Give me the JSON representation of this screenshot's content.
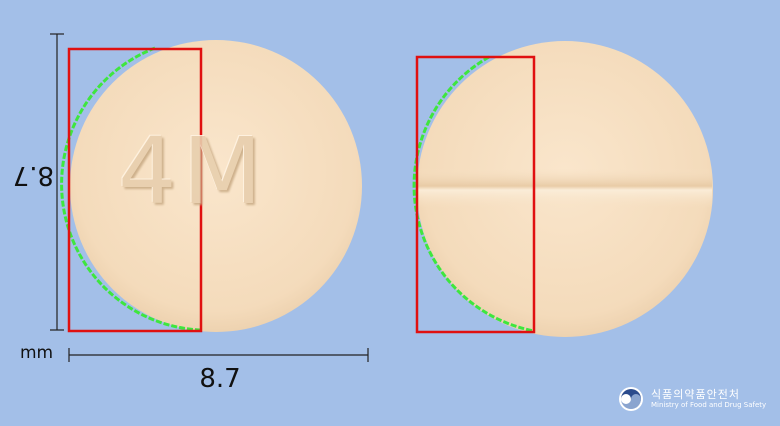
{
  "imprint": {
    "front_text": "4M"
  },
  "dimensions": {
    "height_label": "8.7",
    "width_label": "8.7",
    "unit": "mm"
  },
  "colors": {
    "background": "#a3bfe8",
    "pill": "#f6dfc1",
    "bounding_box": "#e01010",
    "edge_trace": "#3ee63e"
  },
  "branding": {
    "name_ko": "식품의약품안전처",
    "name_en": "Ministry of Food and Drug Safety",
    "logo_icon": "mfds-logo-icon"
  }
}
